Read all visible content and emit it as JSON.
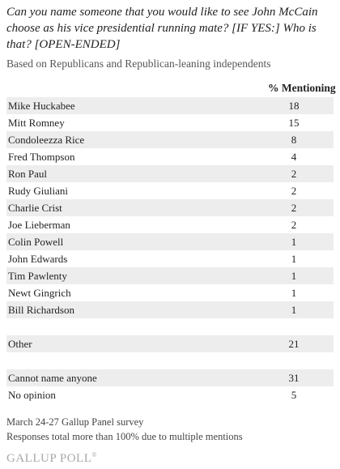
{
  "question": "Can you name someone that you would like to see John McCain choose as his vice presidential running mate? [IF YES:] Who is that? [OPEN-ENDED]",
  "subtitle": "Based on Republicans and Republican-leaning independents",
  "chart_data": {
    "type": "table",
    "column_header": "% Mentioning",
    "rows": [
      {
        "label": "Mike Huckabee",
        "value": "18"
      },
      {
        "label": "Mitt Romney",
        "value": "15"
      },
      {
        "label": "Condoleezza Rice",
        "value": "8"
      },
      {
        "label": "Fred Thompson",
        "value": "4"
      },
      {
        "label": "Ron Paul",
        "value": "2"
      },
      {
        "label": "Rudy Giuliani",
        "value": "2"
      },
      {
        "label": "Charlie Crist",
        "value": "2"
      },
      {
        "label": "Joe Lieberman",
        "value": "2"
      },
      {
        "label": "Colin Powell",
        "value": "1"
      },
      {
        "label": "John Edwards",
        "value": "1"
      },
      {
        "label": "Tim Pawlenty",
        "value": "1"
      },
      {
        "label": "Newt Gingrich",
        "value": "1"
      },
      {
        "label": "Bill Richardson",
        "value": "1"
      },
      {
        "label": "",
        "value": ""
      },
      {
        "label": "Other",
        "value": "21"
      },
      {
        "label": "",
        "value": ""
      },
      {
        "label": "Cannot name anyone",
        "value": "31"
      },
      {
        "label": "No opinion",
        "value": "5"
      }
    ]
  },
  "footnotes": {
    "survey": "March 24-27 Gallup Panel survey",
    "note": "Responses total more than 100% due to multiple mentions"
  },
  "logo": {
    "text": "GALLUP POLL",
    "mark": "®"
  },
  "colors": {
    "row_shade": "#ededed",
    "logo": "#a8a8a8"
  }
}
